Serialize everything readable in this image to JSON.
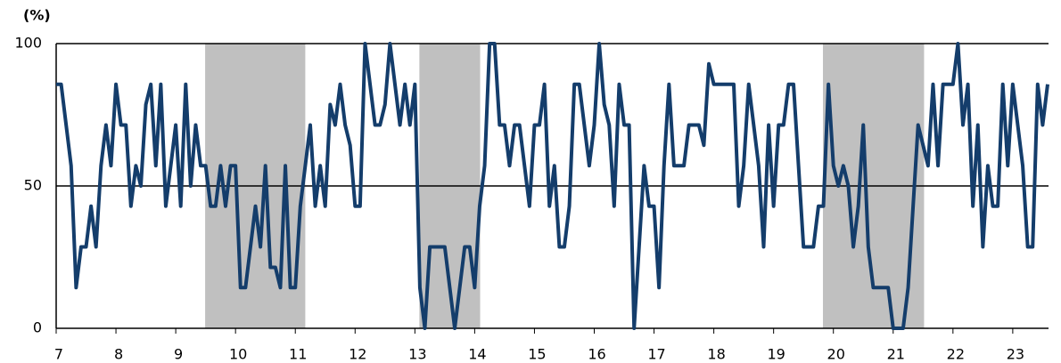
{
  "chart_data": {
    "type": "line",
    "y_label": "(%)",
    "color": "#143d6b",
    "shade_color": "#c0c0c0",
    "ylim": [
      0,
      100
    ],
    "yticks": [
      0,
      50,
      100
    ],
    "grid": true,
    "shaded_spans": [
      [
        29.9,
        50
      ],
      [
        72.9,
        85.1
      ],
      [
        153.9,
        174.2
      ]
    ],
    "categories": [
      "7",
      null,
      null,
      null,
      null,
      null,
      null,
      null,
      null,
      null,
      null,
      null,
      "8",
      null,
      null,
      null,
      null,
      null,
      null,
      null,
      null,
      null,
      null,
      null,
      "9",
      null,
      null,
      null,
      null,
      null,
      null,
      null,
      null,
      null,
      null,
      null,
      "10",
      null,
      null,
      null,
      null,
      null,
      null,
      null,
      null,
      null,
      null,
      null,
      "11",
      null,
      null,
      null,
      null,
      null,
      null,
      null,
      null,
      null,
      null,
      null,
      "12",
      null,
      null,
      null,
      null,
      null,
      null,
      null,
      null,
      null,
      null,
      null,
      "13",
      null,
      null,
      null,
      null,
      null,
      null,
      null,
      null,
      null,
      null,
      null,
      "14",
      null,
      null,
      null,
      null,
      null,
      null,
      null,
      null,
      null,
      null,
      null,
      "15",
      null,
      null,
      null,
      null,
      null,
      null,
      null,
      null,
      null,
      null,
      null,
      "16",
      null,
      null,
      null,
      null,
      null,
      null,
      null,
      null,
      null,
      null,
      null,
      "17",
      null,
      null,
      null,
      null,
      null,
      null,
      null,
      null,
      null,
      null,
      null,
      "18",
      null,
      null,
      null,
      null,
      null,
      null,
      null,
      null,
      null,
      null,
      null,
      "19",
      null,
      null,
      null,
      null,
      null,
      null,
      null,
      null,
      null,
      null,
      null,
      "20",
      null,
      null,
      null,
      null,
      null,
      null,
      null,
      null,
      null,
      null,
      null,
      "21",
      null,
      null,
      null,
      null,
      null,
      null,
      null,
      null,
      null,
      null,
      null,
      "22",
      null,
      null,
      null,
      null,
      null,
      null,
      null,
      null,
      null,
      null,
      null,
      "23",
      null,
      null,
      null,
      null,
      null,
      null,
      null
    ],
    "values": [
      85.7,
      85.7,
      71.4,
      57.1,
      14.3,
      28.6,
      28.6,
      42.9,
      28.6,
      57.1,
      71.4,
      57.1,
      85.7,
      71.4,
      71.4,
      42.9,
      57.1,
      50,
      78.6,
      85.7,
      57.1,
      85.7,
      42.9,
      57.1,
      71.4,
      42.9,
      85.7,
      50,
      71.4,
      57.1,
      57.1,
      42.9,
      42.9,
      57.1,
      42.9,
      57.1,
      57.1,
      14.3,
      14.3,
      28.6,
      42.9,
      28.6,
      57.1,
      21.4,
      21.4,
      14.3,
      57.1,
      14.3,
      14.3,
      42.9,
      57.1,
      71.4,
      42.9,
      57.1,
      42.9,
      78.6,
      71.4,
      85.7,
      71.4,
      64.3,
      42.9,
      42.9,
      100,
      85.7,
      71.4,
      71.4,
      78.6,
      100,
      85.7,
      71.4,
      85.7,
      71.4,
      85.7,
      14.3,
      0,
      28.6,
      28.6,
      28.6,
      28.6,
      14.3,
      0,
      14.3,
      28.6,
      28.6,
      14.3,
      42.9,
      57.1,
      100,
      100,
      71.4,
      71.4,
      57.1,
      71.4,
      71.4,
      57.1,
      42.9,
      71.4,
      71.4,
      85.7,
      42.9,
      57.1,
      28.6,
      28.6,
      42.9,
      85.7,
      85.7,
      71.4,
      57.1,
      71.4,
      100,
      78.6,
      71.4,
      42.9,
      85.7,
      71.4,
      71.4,
      0,
      28.6,
      57.1,
      42.9,
      42.9,
      14.3,
      57.1,
      85.7,
      57.1,
      57.1,
      57.1,
      71.4,
      71.4,
      71.4,
      64.3,
      92.9,
      85.7,
      85.7,
      85.7,
      85.7,
      85.7,
      42.9,
      57.1,
      85.7,
      71.4,
      57.1,
      28.6,
      71.4,
      42.9,
      71.4,
      71.4,
      85.7,
      85.7,
      57.1,
      28.6,
      28.6,
      28.6,
      42.9,
      42.9,
      85.7,
      57.1,
      50,
      57.1,
      50,
      28.6,
      42.9,
      71.4,
      28.6,
      14.3,
      14.3,
      14.3,
      14.3,
      0,
      0,
      0,
      14.3,
      42.9,
      71.4,
      64.3,
      57.1,
      85.7,
      57.1,
      85.7,
      85.7,
      85.7,
      100,
      71.4,
      85.7,
      42.9,
      71.4,
      28.6,
      57.1,
      42.9,
      42.9,
      85.7,
      57.1,
      85.7,
      71.4,
      57.1,
      28.6,
      28.6,
      85.7,
      71.4,
      85.7
    ]
  }
}
